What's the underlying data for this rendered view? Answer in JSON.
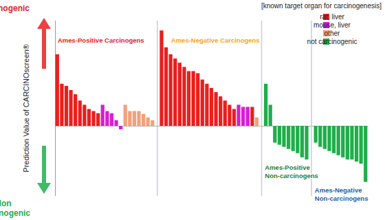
{
  "chart_data": {
    "type": "bar",
    "ylabel": "Prediction Value of CARCINOscreen®",
    "ylim": [
      -10,
      15
    ],
    "yticks": [],
    "tick_labels": false,
    "annotations": [
      {
        "text": "Carcinogenic",
        "color": "#e8201e"
      },
      {
        "text": "Non\n-carcinogenic",
        "color": "#1fae4b"
      }
    ],
    "legend": "top-right",
    "legend_title": "[known target organ for carcinogenesis]",
    "legend_items": [
      {
        "name": "rat, liver",
        "color": "#e8201e"
      },
      {
        "name": "mouse, liver",
        "color": "#d61fd6"
      },
      {
        "name": "other",
        "color": "#f4a07a"
      },
      {
        "name": "not carcinogenic",
        "color": "#1fae4b"
      }
    ],
    "series": [
      {
        "name": "Ames-Positive Carcinogens",
        "color": "#e8201e",
        "values": [
          10.2,
          6.0,
          5.7,
          5.1,
          4.5,
          3.6,
          3.0,
          2.4,
          2.1,
          1.8,
          3.0,
          2.1,
          1.8,
          0.8,
          -0.5,
          3.0,
          2.1,
          2.1,
          2.1,
          1.7,
          1.2,
          0.8
        ],
        "colors": [
          "#e8201e",
          "#e8201e",
          "#e8201e",
          "#e8201e",
          "#e8201e",
          "#e8201e",
          "#e8201e",
          "#e8201e",
          "#e8201e",
          "#e8201e",
          "#d61fd6",
          "#d61fd6",
          "#d61fd6",
          "#d61fd6",
          "#d61fd6",
          "#f4a07a",
          "#f4a07a",
          "#f4a07a",
          "#f4a07a",
          "#f4a07a",
          "#f4a07a",
          "#f4a07a"
        ]
      },
      {
        "name": "Ames-Negative Carcinogens",
        "color": "#f5a623",
        "values": [
          13.6,
          11.2,
          10.2,
          9.6,
          9.0,
          8.4,
          7.8,
          7.8,
          7.5,
          6.6,
          6.0,
          5.4,
          4.8,
          4.2,
          3.6,
          3.0,
          2.4,
          3.0,
          2.7,
          2.7,
          2.7,
          1.2
        ],
        "colors": [
          "#e8201e",
          "#e8201e",
          "#e8201e",
          "#e8201e",
          "#e8201e",
          "#e8201e",
          "#e8201e",
          "#e8201e",
          "#e8201e",
          "#e8201e",
          "#e8201e",
          "#e8201e",
          "#e8201e",
          "#e8201e",
          "#e8201e",
          "#e8201e",
          "#e8201e",
          "#d61fd6",
          "#d61fd6",
          "#d61fd6",
          "#e8201e",
          "#f4a07a"
        ]
      },
      {
        "name": "Ames-Positive\nNon-carcinogens",
        "color": "#2e7d32",
        "values": [
          6.0,
          3.0,
          -2.4,
          -2.7,
          -3.0,
          -3.3,
          -3.6,
          -3.9,
          -4.5,
          -4.8
        ],
        "colors": [
          "#1fae4b",
          "#1fae4b",
          "#1fae4b",
          "#1fae4b",
          "#1fae4b",
          "#1fae4b",
          "#1fae4b",
          "#1fae4b",
          "#1fae4b",
          "#1fae4b"
        ]
      },
      {
        "name": "Ames-Negative\nNon-carcinogens",
        "color": "#1f5fa8",
        "values": [
          -2.4,
          -3.0,
          -3.3,
          -3.6,
          -3.9,
          -4.2,
          -4.5,
          -4.8,
          -4.8,
          -5.1,
          -5.4,
          -8.0
        ],
        "colors": [
          "#1fae4b",
          "#1fae4b",
          "#1fae4b",
          "#1fae4b",
          "#1fae4b",
          "#1fae4b",
          "#1fae4b",
          "#1fae4b",
          "#1fae4b",
          "#1fae4b",
          "#1fae4b",
          "#1fae4b"
        ]
      }
    ]
  }
}
